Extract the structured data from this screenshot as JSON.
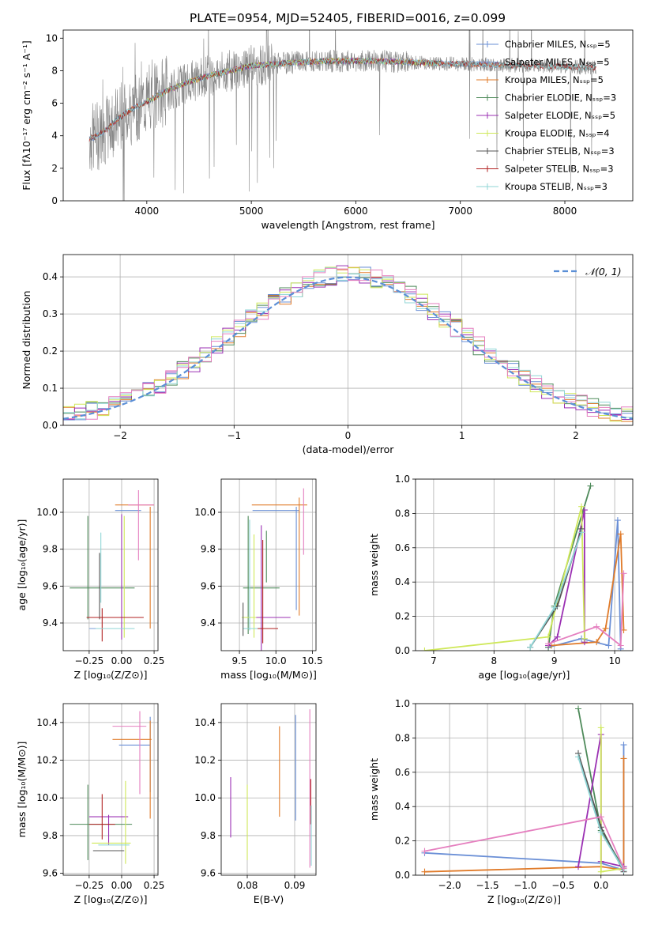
{
  "title": "PLATE=0954, MJD=52405, FIBERID=0016, z=0.099",
  "colors": {
    "chabrier_miles": "#6a8fd6",
    "salpeter_miles": "#7a9fd8",
    "kroupa_miles": "#e07b2a",
    "chabrier_elodie": "#4e8a5a",
    "salpeter_elodie": "#9b30b3",
    "kroupa_elodie": "#cfe85a",
    "chabrier_stelib": "#555555",
    "salpeter_stelib": "#b22222",
    "kroupa_stelib": "#8fd6d6",
    "pink": "#e57fbf",
    "normal": "#5b8fd6",
    "data": "#888888"
  },
  "chart_data": [
    {
      "type": "line",
      "panel": "spectrum",
      "xlabel": "wavelength [Angstrom, rest frame]",
      "ylabel": "Flux [fλ10⁻¹⁷ erg cm⁻² s⁻¹ A⁻¹]",
      "xlim": [
        3200,
        8650
      ],
      "ylim": [
        0,
        10.5
      ],
      "xticks": [
        4000,
        5000,
        6000,
        7000,
        8000
      ],
      "yticks": [
        0,
        2,
        4,
        6,
        8,
        10
      ],
      "legend_position": "right",
      "legend": [
        "Chabrier MILES, Nₛₛₚ=5",
        "Salpeter MILES, Nₛₛₚ=5",
        "Kroupa MILES, Nₛₛₚ=5",
        "Chabrier ELODIE, Nₛₛₚ=3",
        "Salpeter ELODIE, Nₛₛₚ=5",
        "Kroupa ELODIE, Nₛₛₚ=4",
        "Chabrier STELIB, Nₛₛₚ=3",
        "Salpeter STELIB, Nₛₛₚ=3",
        "Kroupa STELIB, Nₛₛₚ=3"
      ],
      "model_curve": {
        "x": [
          3450,
          3500,
          3600,
          3700,
          3800,
          3900,
          4000,
          4200,
          4400,
          4600,
          4800,
          5000,
          5200,
          5400,
          5600,
          5800,
          6000,
          6200,
          6400,
          6600,
          6800,
          7000,
          7200,
          7400,
          7600,
          7800,
          8000,
          8200,
          8300
        ],
        "y": [
          3.8,
          3.9,
          4.3,
          4.9,
          5.4,
          5.8,
          6.1,
          6.8,
          7.3,
          7.7,
          8.0,
          8.3,
          8.4,
          8.5,
          8.55,
          8.6,
          8.6,
          8.6,
          8.55,
          8.5,
          8.45,
          8.4,
          8.4,
          8.35,
          8.3,
          8.3,
          8.25,
          8.2,
          8.2
        ]
      }
    },
    {
      "type": "line",
      "panel": "residual_histogram",
      "xlabel": "(data-model)/error",
      "ylabel": "Normed distribution",
      "xlim": [
        -2.5,
        2.5
      ],
      "ylim": [
        0,
        0.46
      ],
      "xticks": [
        -2,
        -1,
        0,
        1,
        2
      ],
      "yticks": [
        0.0,
        0.1,
        0.2,
        0.3,
        0.4
      ],
      "grid": true,
      "legend_position": "top-right",
      "legend": [
        "𝒩(0, 1)"
      ],
      "bin_width": 0.1
    },
    {
      "type": "scatter",
      "panel": "age_vs_Z",
      "xlabel": "Z [log₁₀(Z/Z⊙)]",
      "ylabel": "age  [log₁₀(age/yr)]",
      "xlim": [
        -0.45,
        0.28
      ],
      "ylim": [
        9.25,
        10.18
      ],
      "xticks": [
        -0.25,
        0.0,
        0.25
      ],
      "yticks": [
        9.4,
        9.6,
        9.8,
        10.0
      ],
      "grid": true,
      "points": [
        {
          "c": "chabrier_miles",
          "x": 0.05,
          "xerr": 0.1,
          "y": 10.01,
          "yerr": 0.0
        },
        {
          "c": "salpeter_miles",
          "x": -0.15,
          "xerr": 0.1,
          "y": 9.37,
          "yerr": 0.0
        },
        {
          "c": "kroupa_miles",
          "x": 0.1,
          "xerr": 0.15,
          "y": 10.04,
          "yerr": 0.0
        },
        {
          "c": "kroupa_miles",
          "x": 0.22,
          "xerr": 0.0,
          "y": 9.7,
          "yerr": 0.33
        },
        {
          "c": "chabrier_elodie",
          "x": -0.26,
          "xerr": 0.0,
          "y": 9.7,
          "yerr": 0.28
        },
        {
          "c": "chabrier_elodie",
          "x": -0.15,
          "xerr": 0.25,
          "y": 9.59,
          "yerr": 0.0
        },
        {
          "c": "salpeter_elodie",
          "x": 0.0,
          "xerr": 0.0,
          "y": 9.65,
          "yerr": 0.34
        },
        {
          "c": "kroupa_elodie",
          "x": 0.02,
          "xerr": 0.0,
          "y": 9.65,
          "yerr": 0.33
        },
        {
          "c": "chabrier_stelib",
          "x": -0.17,
          "xerr": 0.0,
          "y": 9.6,
          "yerr": 0.18
        },
        {
          "c": "salpeter_stelib",
          "x": -0.15,
          "xerr": 0.0,
          "y": 9.39,
          "yerr": 0.09
        },
        {
          "c": "salpeter_stelib",
          "x": -0.05,
          "xerr": 0.22,
          "y": 9.43,
          "yerr": 0.0
        },
        {
          "c": "kroupa_stelib",
          "x": -0.16,
          "xerr": 0.0,
          "y": 9.7,
          "yerr": 0.19
        },
        {
          "c": "kroupa_stelib",
          "x": -0.05,
          "xerr": 0.15,
          "y": 9.37,
          "yerr": 0.0
        },
        {
          "c": "pink",
          "x": 0.13,
          "xerr": 0.0,
          "y": 9.93,
          "yerr": 0.19
        },
        {
          "c": "pink",
          "x": 0.15,
          "xerr": 0.1,
          "y": 10.04,
          "yerr": 0.0
        }
      ]
    },
    {
      "type": "scatter",
      "panel": "age_vs_mass",
      "xlabel": "mass [log₁₀(M/M⊙)]",
      "ylabel": "",
      "xlim": [
        9.25,
        10.55
      ],
      "ylim": [
        9.25,
        10.18
      ],
      "xticks": [
        9.5,
        10.0,
        10.5
      ],
      "yticks": [
        9.4,
        9.6,
        9.8,
        10.0
      ],
      "grid": true,
      "points": [
        {
          "c": "chabrier_miles",
          "x": 10.0,
          "xerr": 0.32,
          "y": 10.01,
          "yerr": 0.0
        },
        {
          "c": "chabrier_miles",
          "x": 10.28,
          "xerr": 0.0,
          "y": 9.75,
          "yerr": 0.28
        },
        {
          "c": "kroupa_miles",
          "x": 10.05,
          "xerr": 0.38,
          "y": 10.04,
          "yerr": 0.0
        },
        {
          "c": "kroupa_miles",
          "x": 10.32,
          "xerr": 0.0,
          "y": 9.76,
          "yerr": 0.32
        },
        {
          "c": "chabrier_elodie",
          "x": 9.62,
          "xerr": 0.0,
          "y": 9.66,
          "yerr": 0.32
        },
        {
          "c": "chabrier_elodie",
          "x": 9.8,
          "xerr": 0.25,
          "y": 9.59,
          "yerr": 0.0
        },
        {
          "c": "chabrier_elodie",
          "x": 9.87,
          "xerr": 0.0,
          "y": 9.76,
          "yerr": 0.14
        },
        {
          "c": "salpeter_elodie",
          "x": 9.95,
          "xerr": 0.25,
          "y": 9.43,
          "yerr": 0.0
        },
        {
          "c": "salpeter_elodie",
          "x": 9.8,
          "xerr": 0.0,
          "y": 9.55,
          "yerr": 0.38
        },
        {
          "c": "kroupa_elodie",
          "x": 9.7,
          "xerr": 0.0,
          "y": 9.6,
          "yerr": 0.28
        },
        {
          "c": "kroupa_elodie",
          "x": 9.63,
          "xerr": 0.1,
          "y": 9.43,
          "yerr": 0.0
        },
        {
          "c": "salpeter_stelib",
          "x": 9.82,
          "xerr": 0.0,
          "y": 9.57,
          "yerr": 0.28
        },
        {
          "c": "salpeter_stelib",
          "x": 9.85,
          "xerr": 0.18,
          "y": 9.37,
          "yerr": 0.0
        },
        {
          "c": "kroupa_stelib",
          "x": 9.65,
          "xerr": 0.1,
          "y": 9.37,
          "yerr": 0.0
        },
        {
          "c": "kroupa_stelib",
          "x": 9.64,
          "xerr": 0.0,
          "y": 9.66,
          "yerr": 0.3
        },
        {
          "c": "pink",
          "x": 10.38,
          "xerr": 0.0,
          "y": 9.95,
          "yerr": 0.18
        },
        {
          "c": "chabrier_stelib",
          "x": 9.55,
          "xerr": 0.0,
          "y": 9.42,
          "yerr": 0.09
        }
      ]
    },
    {
      "type": "line",
      "panel": "massweight_vs_age",
      "xlabel": "age  [log₁₀(age/yr)]",
      "ylabel": "mass weight",
      "xlim": [
        6.7,
        10.3
      ],
      "ylim": [
        0,
        1.0
      ],
      "xticks": [
        7,
        8,
        9,
        10
      ],
      "yticks": [
        0.0,
        0.2,
        0.4,
        0.6,
        0.8,
        1.0
      ],
      "grid": true,
      "series": [
        {
          "c": "chabrier_miles",
          "x": [
            8.9,
            9.45,
            9.9,
            10.05,
            10.1
          ],
          "y": [
            0.02,
            0.07,
            0.03,
            0.76,
            0.01
          ]
        },
        {
          "c": "kroupa_miles",
          "x": [
            8.95,
            9.7,
            9.85,
            10.1,
            10.15
          ],
          "y": [
            0.03,
            0.05,
            0.13,
            0.68,
            0.12
          ]
        },
        {
          "c": "chabrier_elodie",
          "x": [
            8.9,
            9.0,
            9.6
          ],
          "y": [
            0.02,
            0.26,
            0.96
          ]
        },
        {
          "c": "salpeter_elodie",
          "x": [
            8.9,
            9.05,
            9.5,
            9.5
          ],
          "y": [
            0.03,
            0.08,
            0.82,
            0.05
          ]
        },
        {
          "c": "kroupa_elodie",
          "x": [
            6.85,
            8.9,
            9.45,
            9.5
          ],
          "y": [
            0.0,
            0.08,
            0.84,
            0.07
          ]
        },
        {
          "c": "chabrier_stelib",
          "x": [
            8.6,
            9.05,
            9.45
          ],
          "y": [
            0.02,
            0.26,
            0.71
          ]
        },
        {
          "c": "kroupa_stelib",
          "x": [
            8.6,
            9.0,
            9.45
          ],
          "y": [
            0.02,
            0.25,
            0.69
          ]
        },
        {
          "c": "pink",
          "x": [
            8.9,
            9.7,
            10.1,
            10.15
          ],
          "y": [
            0.04,
            0.14,
            0.03,
            0.45
          ]
        }
      ]
    },
    {
      "type": "scatter",
      "panel": "mass_vs_Z",
      "xlabel": "Z [log₁₀(Z/Z⊙)]",
      "ylabel": "mass [log₁₀(M/M⊙)]",
      "xlim": [
        -0.45,
        0.28
      ],
      "ylim": [
        9.59,
        10.5
      ],
      "xticks": [
        -0.25,
        0.0,
        0.25
      ],
      "yticks": [
        9.6,
        9.8,
        10.0,
        10.2,
        10.4
      ],
      "grid": true,
      "points": [
        {
          "c": "chabrier_miles",
          "x": 0.1,
          "xerr": 0.12,
          "y": 10.28,
          "yerr": 0.0
        },
        {
          "c": "chabrier_miles",
          "x": 0.22,
          "xerr": 0.0,
          "y": 10.23,
          "yerr": 0.2
        },
        {
          "c": "kroupa_miles",
          "x": 0.08,
          "xerr": 0.15,
          "y": 10.31,
          "yerr": 0.0
        },
        {
          "c": "kroupa_miles",
          "x": 0.22,
          "xerr": 0.0,
          "y": 10.15,
          "yerr": 0.26
        },
        {
          "c": "chabrier_elodie",
          "x": -0.16,
          "xerr": 0.24,
          "y": 9.86,
          "yerr": 0.0
        },
        {
          "c": "chabrier_elodie",
          "x": -0.26,
          "xerr": 0.0,
          "y": 9.87,
          "yerr": 0.2
        },
        {
          "c": "salpeter_elodie",
          "x": -0.1,
          "xerr": 0.15,
          "y": 9.9,
          "yerr": 0.0
        },
        {
          "c": "salpeter_elodie",
          "x": -0.1,
          "xerr": 0.0,
          "y": 9.83,
          "yerr": 0.08
        },
        {
          "c": "kroupa_elodie",
          "x": 0.03,
          "xerr": 0.0,
          "y": 9.87,
          "yerr": 0.22
        },
        {
          "c": "kroupa_elodie",
          "x": -0.08,
          "xerr": 0.15,
          "y": 9.76,
          "yerr": 0.0
        },
        {
          "c": "chabrier_stelib",
          "x": -0.1,
          "xerr": 0.12,
          "y": 9.72,
          "yerr": 0.0
        },
        {
          "c": "salpeter_stelib",
          "x": -0.15,
          "xerr": 0.1,
          "y": 9.86,
          "yerr": 0.0
        },
        {
          "c": "salpeter_stelib",
          "x": -0.15,
          "xerr": 0.0,
          "y": 9.9,
          "yerr": 0.12
        },
        {
          "c": "kroupa_stelib",
          "x": -0.06,
          "xerr": 0.12,
          "y": 9.75,
          "yerr": 0.0
        },
        {
          "c": "pink",
          "x": 0.06,
          "xerr": 0.13,
          "y": 10.38,
          "yerr": 0.0
        },
        {
          "c": "pink",
          "x": 0.14,
          "xerr": 0.0,
          "y": 10.24,
          "yerr": 0.22
        }
      ]
    },
    {
      "type": "scatter",
      "panel": "mass_vs_EBV",
      "xlabel": "E(B-V)",
      "ylabel": "",
      "xlim": [
        0.0745,
        0.0945
      ],
      "ylim": [
        9.59,
        10.5
      ],
      "xticks": [
        0.08,
        0.09
      ],
      "yticks": [
        9.6,
        9.8,
        10.0,
        10.2,
        10.4
      ],
      "grid": true,
      "points": [
        {
          "c": "salpeter_elodie",
          "x": 0.0765,
          "xerr": 0.0,
          "y": 9.95,
          "yerr": 0.16
        },
        {
          "c": "kroupa_elodie",
          "x": 0.08,
          "xerr": 0.0,
          "y": 9.87,
          "yerr": 0.2
        },
        {
          "c": "kroupa_miles",
          "x": 0.0868,
          "xerr": 0.0,
          "y": 10.14,
          "yerr": 0.24
        },
        {
          "c": "chabrier_miles",
          "x": 0.0902,
          "xerr": 0.0,
          "y": 10.16,
          "yerr": 0.28
        },
        {
          "c": "pink",
          "x": 0.0932,
          "xerr": 0.0,
          "y": 10.05,
          "yerr": 0.42
        },
        {
          "c": "salpeter_stelib",
          "x": 0.0934,
          "xerr": 0.0,
          "y": 9.98,
          "yerr": 0.12
        },
        {
          "c": "kroupa_stelib",
          "x": 0.0935,
          "xerr": 0.0,
          "y": 9.8,
          "yerr": 0.16
        }
      ]
    },
    {
      "type": "line",
      "panel": "massweight_vs_Z",
      "xlabel": "Z [log₁₀(Z/Z⊙)]",
      "ylabel": "mass weight",
      "xlim": [
        -2.45,
        0.42
      ],
      "ylim": [
        0,
        1.0
      ],
      "xticks": [
        -2.0,
        -1.5,
        -1.0,
        -0.5,
        0.0
      ],
      "yticks": [
        0.0,
        0.2,
        0.4,
        0.6,
        0.8,
        1.0
      ],
      "grid": true,
      "series": [
        {
          "c": "chabrier_miles",
          "x": [
            -2.33,
            0.0,
            0.3,
            0.3
          ],
          "y": [
            0.13,
            0.07,
            0.03,
            0.76
          ]
        },
        {
          "c": "kroupa_miles",
          "x": [
            -2.33,
            0.0,
            0.3,
            0.3
          ],
          "y": [
            0.02,
            0.05,
            0.03,
            0.68
          ]
        },
        {
          "c": "chabrier_elodie",
          "x": [
            -0.3,
            0.0,
            0.3
          ],
          "y": [
            0.97,
            0.26,
            0.04
          ]
        },
        {
          "c": "salpeter_elodie",
          "x": [
            -0.3,
            0.0,
            0.0,
            0.3
          ],
          "y": [
            0.05,
            0.82,
            0.08,
            0.05
          ]
        },
        {
          "c": "kroupa_elodie",
          "x": [
            0.0,
            0.0,
            0.3
          ],
          "y": [
            0.86,
            0.02,
            0.04
          ]
        },
        {
          "c": "chabrier_stelib",
          "x": [
            -0.3,
            0.0,
            0.3
          ],
          "y": [
            0.71,
            0.28,
            0.02
          ]
        },
        {
          "c": "kroupa_stelib",
          "x": [
            -0.3,
            0.0,
            0.3
          ],
          "y": [
            0.69,
            0.25,
            0.03
          ]
        },
        {
          "c": "pink",
          "x": [
            -2.33,
            0.0,
            0.3
          ],
          "y": [
            0.14,
            0.34,
            0.04
          ]
        }
      ]
    }
  ]
}
